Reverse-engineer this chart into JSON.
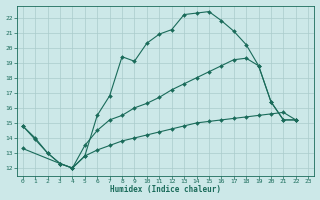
{
  "xlabel": "Humidex (Indice chaleur)",
  "bg_color": "#cce8e8",
  "line_color": "#1a6b5a",
  "grid_color": "#aacccc",
  "xlim": [
    -0.5,
    23.5
  ],
  "ylim": [
    11.5,
    22.8
  ],
  "xticks": [
    0,
    1,
    2,
    3,
    4,
    5,
    6,
    7,
    8,
    9,
    10,
    11,
    12,
    13,
    14,
    15,
    16,
    17,
    18,
    19,
    20,
    21,
    22,
    23
  ],
  "yticks": [
    12,
    13,
    14,
    15,
    16,
    17,
    18,
    19,
    20,
    21,
    22
  ],
  "line1_x": [
    0,
    1,
    2,
    3,
    4,
    5,
    6,
    7,
    8,
    9,
    10,
    11,
    12,
    13,
    14,
    15,
    16,
    17,
    18,
    19,
    20,
    21,
    22
  ],
  "line1_y": [
    14.8,
    13.9,
    13.0,
    12.3,
    12.0,
    12.8,
    15.5,
    16.8,
    19.4,
    19.1,
    20.3,
    20.9,
    21.2,
    22.2,
    22.3,
    22.4,
    21.8,
    21.1,
    20.2,
    18.8,
    16.4,
    15.2,
    15.2
  ],
  "line2_x": [
    0,
    1,
    2,
    3,
    4,
    5,
    6,
    7,
    8,
    9,
    10,
    11,
    12,
    13,
    14,
    15,
    16,
    17,
    18,
    19,
    20,
    21,
    22
  ],
  "line2_y": [
    14.8,
    14.0,
    13.0,
    12.3,
    12.0,
    13.5,
    14.5,
    15.2,
    15.5,
    16.0,
    16.3,
    16.7,
    17.2,
    17.6,
    18.0,
    18.4,
    18.8,
    19.2,
    19.3,
    18.8,
    16.4,
    15.2,
    15.2
  ],
  "line3_x": [
    0,
    3,
    4,
    5,
    6,
    7,
    8,
    9,
    10,
    11,
    12,
    13,
    14,
    15,
    16,
    17,
    18,
    19,
    20,
    21,
    22
  ],
  "line3_y": [
    13.3,
    12.3,
    12.0,
    12.8,
    13.2,
    13.5,
    13.8,
    14.0,
    14.2,
    14.4,
    14.6,
    14.8,
    15.0,
    15.1,
    15.2,
    15.3,
    15.4,
    15.5,
    15.6,
    15.7,
    15.2
  ]
}
